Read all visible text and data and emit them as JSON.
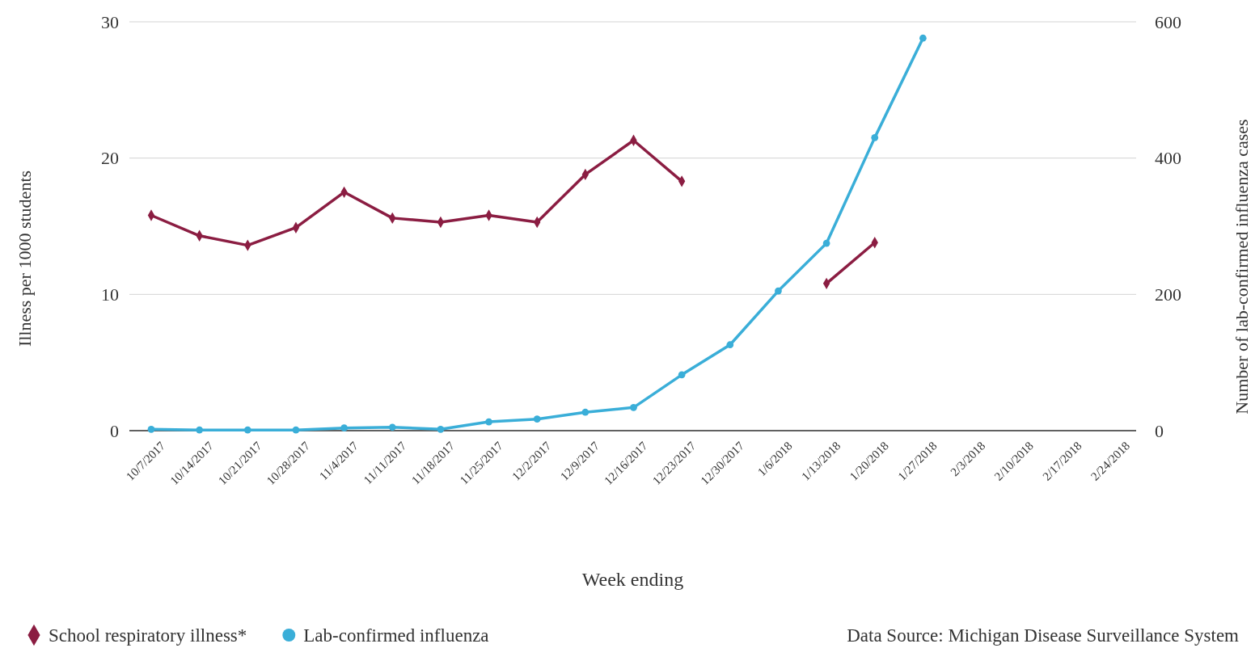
{
  "chart_data": {
    "type": "line",
    "xlabel": "Week ending",
    "ylabel": "Illness per 1000 students",
    "y2label": "Number of lab-confirmed influenza cases",
    "categories": [
      "10/7/2017",
      "10/14/2017",
      "10/21/2017",
      "10/28/2017",
      "11/4/2017",
      "11/11/2017",
      "11/18/2017",
      "11/25/2017",
      "12/2/2017",
      "12/9/2017",
      "12/16/2017",
      "12/23/2017",
      "12/30/2017",
      "1/6/2018",
      "1/13/2018",
      "1/20/2018",
      "1/27/2018",
      "2/3/2018",
      "2/10/2018",
      "2/17/2018",
      "2/24/2018"
    ],
    "series": [
      {
        "name": "School respiratory illness*",
        "color": "#8b1d42",
        "marker": "diamond",
        "values": [
          15.8,
          14.3,
          13.6,
          14.9,
          17.5,
          15.6,
          15.3,
          15.8,
          15.3,
          18.8,
          21.3,
          18.3,
          null,
          null,
          10.8,
          13.8,
          null,
          null,
          null,
          null,
          null
        ]
      },
      {
        "name": "Lab-confirmed influenza",
        "color": "#3aaed8",
        "marker": "circle",
        "axis": "y2",
        "values": [
          2,
          1,
          1,
          1,
          4,
          5,
          2,
          13,
          17,
          27,
          34,
          82,
          126,
          205,
          275,
          430,
          576,
          null,
          null,
          null,
          null
        ]
      }
    ],
    "ylim": [
      0,
      30
    ],
    "yticks": [
      0,
      10,
      20,
      30
    ],
    "y2lim": [
      0,
      600
    ],
    "y2ticks": [
      0,
      200,
      400,
      600
    ],
    "grid": "y",
    "legend": "bottom",
    "line_style": "solid",
    "annotations": [
      "Data Source: Michigan Disease Surveillance System"
    ]
  }
}
